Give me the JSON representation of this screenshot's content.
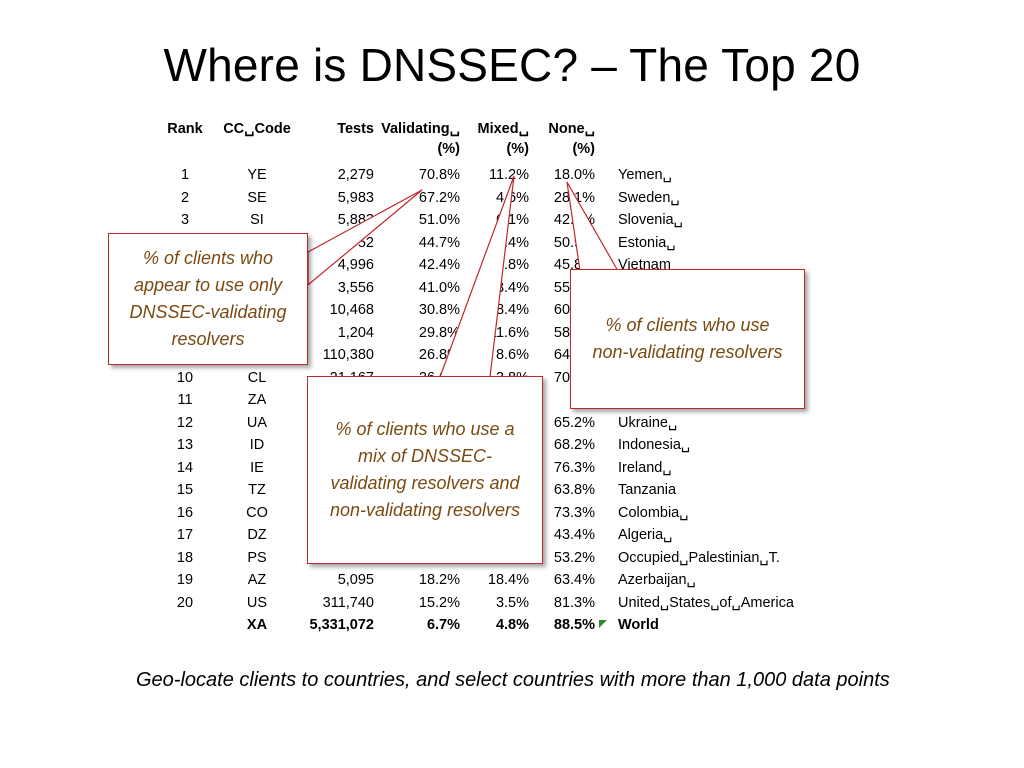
{
  "title": "Where is DNSSEC? – The Top 20",
  "table": {
    "headers": {
      "rank": "Rank",
      "code": "CC␣Code",
      "tests": "Tests",
      "validating": "Validating␣",
      "validating_unit": "(%)",
      "mixed": "Mixed␣",
      "mixed_unit": "(%)",
      "none": "None␣",
      "none_unit": "(%)"
    },
    "rows": [
      {
        "rank": "1",
        "code": "YE",
        "tests": "2,279",
        "validating": "70.8%",
        "mixed": "11.2%",
        "none": "18.0%",
        "name": "Yemen␣"
      },
      {
        "rank": "2",
        "code": "SE",
        "tests": "5,983",
        "validating": "67.2%",
        "mixed": "4.6%",
        "none": "28.1%",
        "name": "Sweden␣"
      },
      {
        "rank": "3",
        "code": "SI",
        "tests": "5,883",
        "validating": "51.0%",
        "mixed": "6.1%",
        "none": "42.9%",
        "name": "Slovenia␣"
      },
      {
        "rank": "4",
        "code": "EE",
        "tests": "2,952",
        "validating": "44.7%",
        "mixed": "4.4%",
        "none": "50.9%",
        "name": "Estonia␣"
      },
      {
        "rank": "5",
        "code": "VN",
        "tests": "4,996",
        "validating": "42.4%",
        "mixed": "11.8%",
        "none": "45.8%",
        "name": "Vietnam"
      },
      {
        "rank": "6",
        "code": "FI",
        "tests": "3,556",
        "validating": "41.0%",
        "mixed": "3.4%",
        "none": "55.6%",
        "name": ""
      },
      {
        "rank": "7",
        "code": "CZ",
        "tests": "10,468",
        "validating": "30.8%",
        "mixed": "8.4%",
        "none": "60.8%",
        "name": ""
      },
      {
        "rank": "8",
        "code": "LU",
        "tests": "1,204",
        "validating": "29.8%",
        "mixed": "11.6%",
        "none": "58.6%",
        "name": ""
      },
      {
        "rank": "9",
        "code": "IN",
        "tests": "110,380",
        "validating": "26.8%",
        "mixed": "8.6%",
        "none": "64.6%",
        "name": ""
      },
      {
        "rank": "10",
        "code": "CL",
        "tests": "21,167",
        "validating": "26.0%",
        "mixed": "3.8%",
        "none": "70.2%",
        "name": ""
      },
      {
        "rank": "11",
        "code": "ZA",
        "tests": "",
        "validating": "",
        "mixed": "",
        "none": "68.",
        "name": ""
      },
      {
        "rank": "12",
        "code": "UA",
        "tests": "",
        "validating": "",
        "mixed": "",
        "none": "65.2%",
        "name": "Ukraine␣"
      },
      {
        "rank": "13",
        "code": "ID",
        "tests": "",
        "validating": "",
        "mixed": "",
        "none": "68.2%",
        "name": "Indonesia␣"
      },
      {
        "rank": "14",
        "code": "IE",
        "tests": "",
        "validating": "",
        "mixed": "",
        "none": "76.3%",
        "name": "Ireland␣"
      },
      {
        "rank": "15",
        "code": "TZ",
        "tests": "",
        "validating": "",
        "mixed": "",
        "none": "63.8%",
        "name": "Tanzania"
      },
      {
        "rank": "16",
        "code": "CO",
        "tests": "",
        "validating": "",
        "mixed": "",
        "none": "73.3%",
        "name": "Colombia␣"
      },
      {
        "rank": "17",
        "code": "DZ",
        "tests": "",
        "validating": "",
        "mixed": "",
        "none": "43.4%",
        "name": "Algeria␣"
      },
      {
        "rank": "18",
        "code": "PS",
        "tests": "3,442",
        "validating": "",
        "mixed": "",
        "none": "53.2%",
        "name": "Occupied␣Palestinian␣T."
      },
      {
        "rank": "19",
        "code": "AZ",
        "tests": "5,095",
        "validating": "18.2%",
        "mixed": "18.4%",
        "none": "63.4%",
        "name": "Azerbaijan␣"
      },
      {
        "rank": "20",
        "code": "US",
        "tests": "311,740",
        "validating": "15.2%",
        "mixed": "3.5%",
        "none": "81.3%",
        "name": "United␣States␣of␣America"
      }
    ],
    "world": {
      "rank": "",
      "code": "XA",
      "tests": "5,331,072",
      "validating": "6.7%",
      "mixed": "4.8%",
      "none": "88.5%",
      "name": "World"
    }
  },
  "callouts": {
    "validating": "% of clients who appear to use only DNSSEC-validating resolvers",
    "non_validating": "% of clients who use non-validating resolvers",
    "mixed": "% of clients who use a mix of DNSSEC-validating resolvers and non-validating resolvers"
  },
  "colors": {
    "callout_border": "#c0272d",
    "callout_text": "#7a4a12",
    "leader_line": "#c0272d"
  },
  "footnote": "Geo-locate clients to countries, and select countries with more than 1,000 data points"
}
